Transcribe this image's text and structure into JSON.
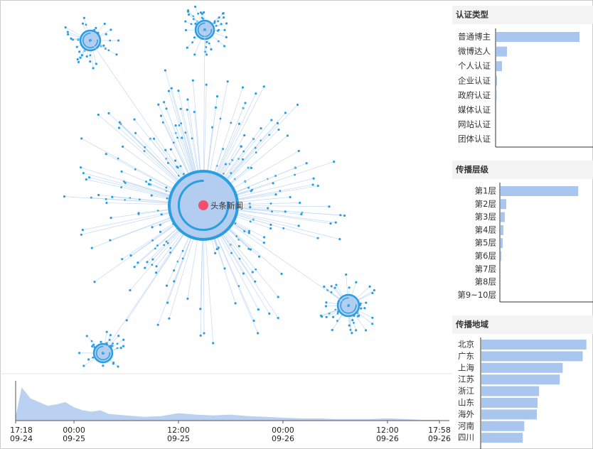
{
  "network": {
    "root_label": "头条新闻"
  },
  "chart_data": [
    {
      "type": "area",
      "x": [
        "09-24 17:18",
        "09-24 18:00",
        "09-24 19:00",
        "09-24 20:00",
        "09-24 21:00",
        "09-24 22:00",
        "09-24 23:00",
        "09-25 00:00",
        "09-25 01:00",
        "09-25 02:00",
        "09-25 03:00",
        "09-25 04:00",
        "09-25 06:00",
        "09-25 08:00",
        "09-25 10:00",
        "09-25 12:00",
        "09-25 14:00",
        "09-25 16:00",
        "09-25 18:00",
        "09-25 20:00",
        "09-25 22:00",
        "09-26 00:00",
        "09-26 02:00",
        "09-26 04:00",
        "09-26 06:00",
        "09-26 08:00",
        "09-26 10:00",
        "09-26 12:00",
        "09-26 14:00",
        "09-26 16:00",
        "09-26 17:58"
      ],
      "values": [
        5,
        45,
        30,
        25,
        20,
        22,
        25,
        18,
        14,
        12,
        14,
        9,
        7,
        5,
        6,
        10,
        8,
        7,
        8,
        6,
        5,
        4,
        3,
        3,
        2,
        2,
        2,
        3,
        2,
        1,
        1
      ],
      "color": "#a9c6ee",
      "xlim": [
        "09-24 17:18",
        "09-26 17:58"
      ],
      "xticks": [
        {
          "value": "09-24 17:18",
          "label": "17:18\n09-24"
        },
        {
          "value": "09-25 00:00",
          "label": "00:00\n09-25"
        },
        {
          "value": "09-25 12:00",
          "label": "12:00\n09-25"
        },
        {
          "value": "09-26 00:00",
          "label": "00:00\n09-26"
        },
        {
          "value": "09-26 12:00",
          "label": "12:00\n09-26"
        },
        {
          "value": "09-26 17:58",
          "label": "17:58\n09-26"
        }
      ],
      "ylim": [
        0,
        50
      ]
    },
    {
      "type": "hbar",
      "title": "认证类型",
      "categories": [
        "普通博主",
        "微博达人",
        "个人认证",
        "企业认证",
        "政府认证",
        "媒体认证",
        "网站认证",
        "团体认证"
      ],
      "values": [
        117,
        15,
        8,
        1,
        0.5,
        0,
        0,
        0
      ],
      "color": "#a9c6ee",
      "xlim": [
        0,
        135
      ]
    },
    {
      "type": "hbar",
      "title": "传播层级",
      "categories": [
        "第1层",
        "第2层",
        "第3层",
        "第4层",
        "第5层",
        "第6层",
        "第7层",
        "第8层",
        "第9~10层"
      ],
      "values": [
        110,
        8,
        6,
        4,
        3,
        1,
        0,
        0,
        0
      ],
      "color": "#a9c6ee",
      "xlim": [
        0,
        130
      ]
    },
    {
      "type": "hbar",
      "title": "传播地域",
      "categories": [
        "北京",
        "广东",
        "上海",
        "江苏",
        "浙江",
        "山东",
        "海外",
        "河南",
        "四川"
      ],
      "values": [
        142,
        137,
        110,
        106,
        78,
        76,
        75,
        58,
        56
      ],
      "color": "#a9c6ee",
      "xlim": [
        0,
        150
      ]
    }
  ]
}
